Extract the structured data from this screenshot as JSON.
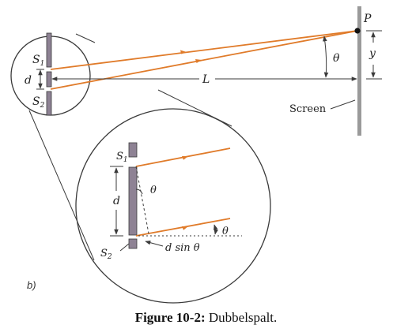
{
  "diagram": {
    "labels": {
      "p": "P",
      "y": "y",
      "theta": "θ",
      "l": "L",
      "screen": "Screen",
      "s1": "S",
      "s1_sub": "1",
      "s2": "S",
      "s2_sub": "2",
      "d": "d",
      "d_zoom": "d",
      "s1_zoom": "S",
      "s1_zoom_sub": "1",
      "s2_zoom": "S",
      "s2_zoom_sub": "2",
      "theta_zoom_slit": "θ",
      "theta_zoom_ray": "θ",
      "d_sin_theta": "d sin θ",
      "panel": "b)"
    },
    "colors": {
      "ray": "#e07b2a",
      "slit": "#8e8294",
      "line": "#3a3a3a",
      "screen": "#9a9a9a"
    }
  },
  "caption": {
    "label": "Figure 10-2:",
    "text": "Dubbelspalt."
  }
}
